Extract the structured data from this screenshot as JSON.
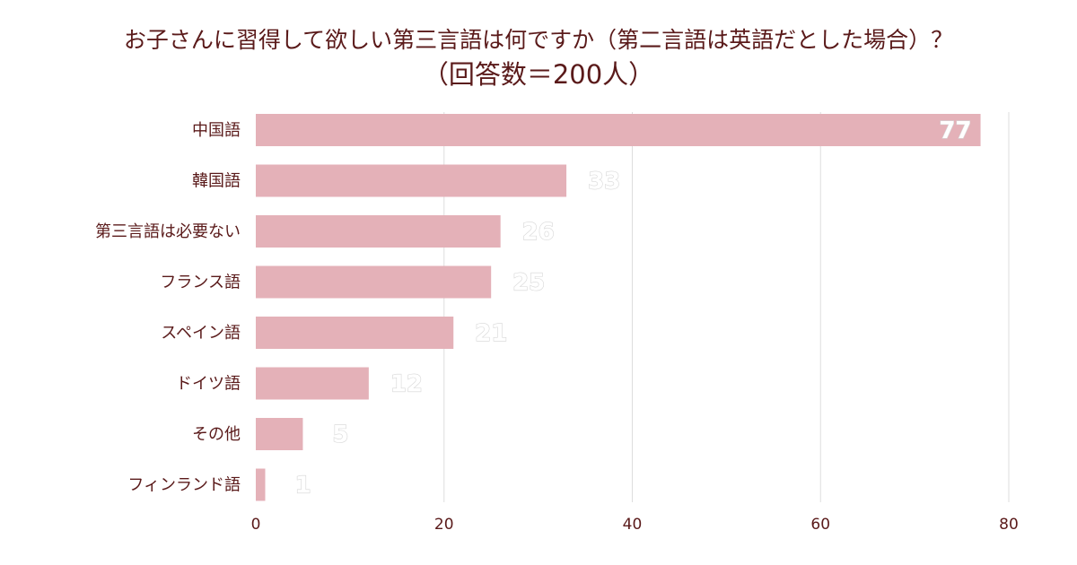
{
  "title": {
    "line1": "お子さんに習得して欲しい第三言語は何ですか（第二言語は英語だとした場合）？",
    "line2": "（回答数＝200人）"
  },
  "colors": {
    "bar": "#e4b1b8",
    "grid": "#dddddd",
    "text": "#5a1a1a",
    "value_label": "#ffffff"
  },
  "chart_data": {
    "type": "bar",
    "orientation": "horizontal",
    "title": "お子さんに習得して欲しい第三言語は何ですか（第二言語は英語だとした場合）？（回答数＝200人）",
    "categories": [
      "中国語",
      "韓国語",
      "第三言語は必要ない",
      "フランス語",
      "スペイン語",
      "ドイツ語",
      "その他",
      "フィンランド語"
    ],
    "values": [
      77,
      33,
      26,
      25,
      21,
      12,
      5,
      1
    ],
    "xlim": [
      0,
      80
    ],
    "xticks": [
      "0",
      "20",
      "40",
      "60",
      "80"
    ],
    "grid": "vertical",
    "legend": "none"
  }
}
